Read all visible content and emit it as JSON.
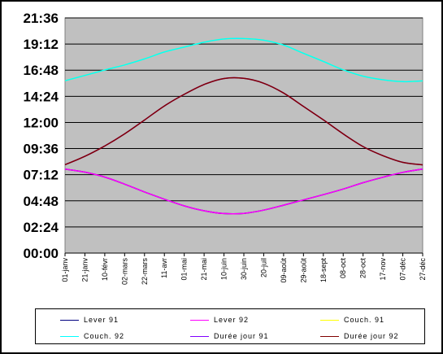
{
  "chart_data": {
    "type": "line",
    "title": "",
    "xlabel": "",
    "ylabel": "",
    "y_range": [
      "00:00",
      "21:36"
    ],
    "y_ticks": [
      "00:00",
      "02:24",
      "04:48",
      "07:12",
      "09:36",
      "12:00",
      "14:24",
      "16:48",
      "19:12",
      "21:36"
    ],
    "x_range_day_of_year": [
      1,
      361
    ],
    "x_ticks": [
      "01-janv",
      "21-janv",
      "10-févr",
      "02-mars",
      "22-mars",
      "11-avr",
      "01-mai",
      "21-mai",
      "10-juin",
      "30-juin",
      "20-juil",
      "09-août",
      "29-août",
      "18-sept",
      "08-oct",
      "28-oct",
      "17-nov",
      "07-déc",
      "27-déc"
    ],
    "plot_background": "#c0c0c0",
    "grid": true,
    "legend_position": "bottom",
    "series": [
      {
        "name": "Lever 91",
        "color": "#000080",
        "x": [
          1,
          21,
          41,
          61,
          81,
          101,
          121,
          141,
          161,
          181,
          201,
          221,
          241,
          261,
          281,
          301,
          321,
          341,
          361
        ],
        "y": [
          "07:43",
          "07:26",
          "06:59",
          "06:20",
          "05:37",
          "04:57",
          "04:20",
          "03:53",
          "03:38",
          "03:39",
          "03:57",
          "04:24",
          "04:53",
          "05:22",
          "05:53",
          "06:28",
          "06:58",
          "07:25",
          "07:43"
        ]
      },
      {
        "name": "Lever 92",
        "color": "#ff00ff",
        "x": [
          1,
          21,
          41,
          61,
          81,
          101,
          121,
          141,
          161,
          181,
          201,
          221,
          241,
          261,
          281,
          301,
          321,
          341,
          361
        ],
        "y": [
          "07:43",
          "07:26",
          "06:59",
          "06:20",
          "05:37",
          "04:57",
          "04:20",
          "03:53",
          "03:38",
          "03:39",
          "03:57",
          "04:24",
          "04:53",
          "05:22",
          "05:53",
          "06:28",
          "06:58",
          "07:25",
          "07:43"
        ]
      },
      {
        "name": "Couch. 91",
        "color": "#ffff00",
        "x": [
          1,
          21,
          41,
          61,
          81,
          101,
          121,
          141,
          161,
          181,
          201,
          221,
          241,
          261,
          281,
          301,
          321,
          341,
          361
        ],
        "y": [
          "15:50",
          "16:19",
          "16:49",
          "17:17",
          "17:50",
          "18:28",
          "18:55",
          "19:22",
          "19:40",
          "19:42",
          "19:33",
          "19:06",
          "18:21",
          "17:36",
          "16:50",
          "16:15",
          "15:55",
          "15:45",
          "15:49"
        ]
      },
      {
        "name": "Couch. 92",
        "color": "#00ffff",
        "x": [
          1,
          21,
          41,
          61,
          81,
          101,
          121,
          141,
          161,
          181,
          201,
          221,
          241,
          261,
          281,
          301,
          321,
          341,
          361
        ],
        "y": [
          "15:50",
          "16:19",
          "16:49",
          "17:17",
          "17:50",
          "18:28",
          "18:55",
          "19:22",
          "19:40",
          "19:42",
          "19:33",
          "19:06",
          "18:21",
          "17:36",
          "16:50",
          "16:15",
          "15:55",
          "15:45",
          "15:49"
        ]
      },
      {
        "name": "Durée jour 91",
        "color": "#8000ff",
        "x": [
          1,
          21,
          41,
          61,
          81,
          101,
          121,
          141,
          161,
          181,
          201,
          221,
          241,
          261,
          281,
          301,
          321,
          341,
          361
        ],
        "y": [
          "08:07",
          "08:53",
          "09:50",
          "10:57",
          "12:13",
          "13:31",
          "14:35",
          "15:29",
          "16:02",
          "16:03",
          "15:36",
          "14:42",
          "13:28",
          "12:14",
          "10:57",
          "09:47",
          "08:57",
          "08:20",
          "08:06"
        ]
      },
      {
        "name": "Durée jour 92",
        "color": "#800000",
        "x": [
          1,
          21,
          41,
          61,
          81,
          101,
          121,
          141,
          161,
          181,
          201,
          221,
          241,
          261,
          281,
          301,
          321,
          341,
          361
        ],
        "y": [
          "08:07",
          "08:53",
          "09:50",
          "10:57",
          "12:13",
          "13:31",
          "14:35",
          "15:29",
          "16:02",
          "16:03",
          "15:36",
          "14:42",
          "13:28",
          "12:14",
          "10:57",
          "09:47",
          "08:57",
          "08:20",
          "08:06"
        ]
      }
    ]
  }
}
